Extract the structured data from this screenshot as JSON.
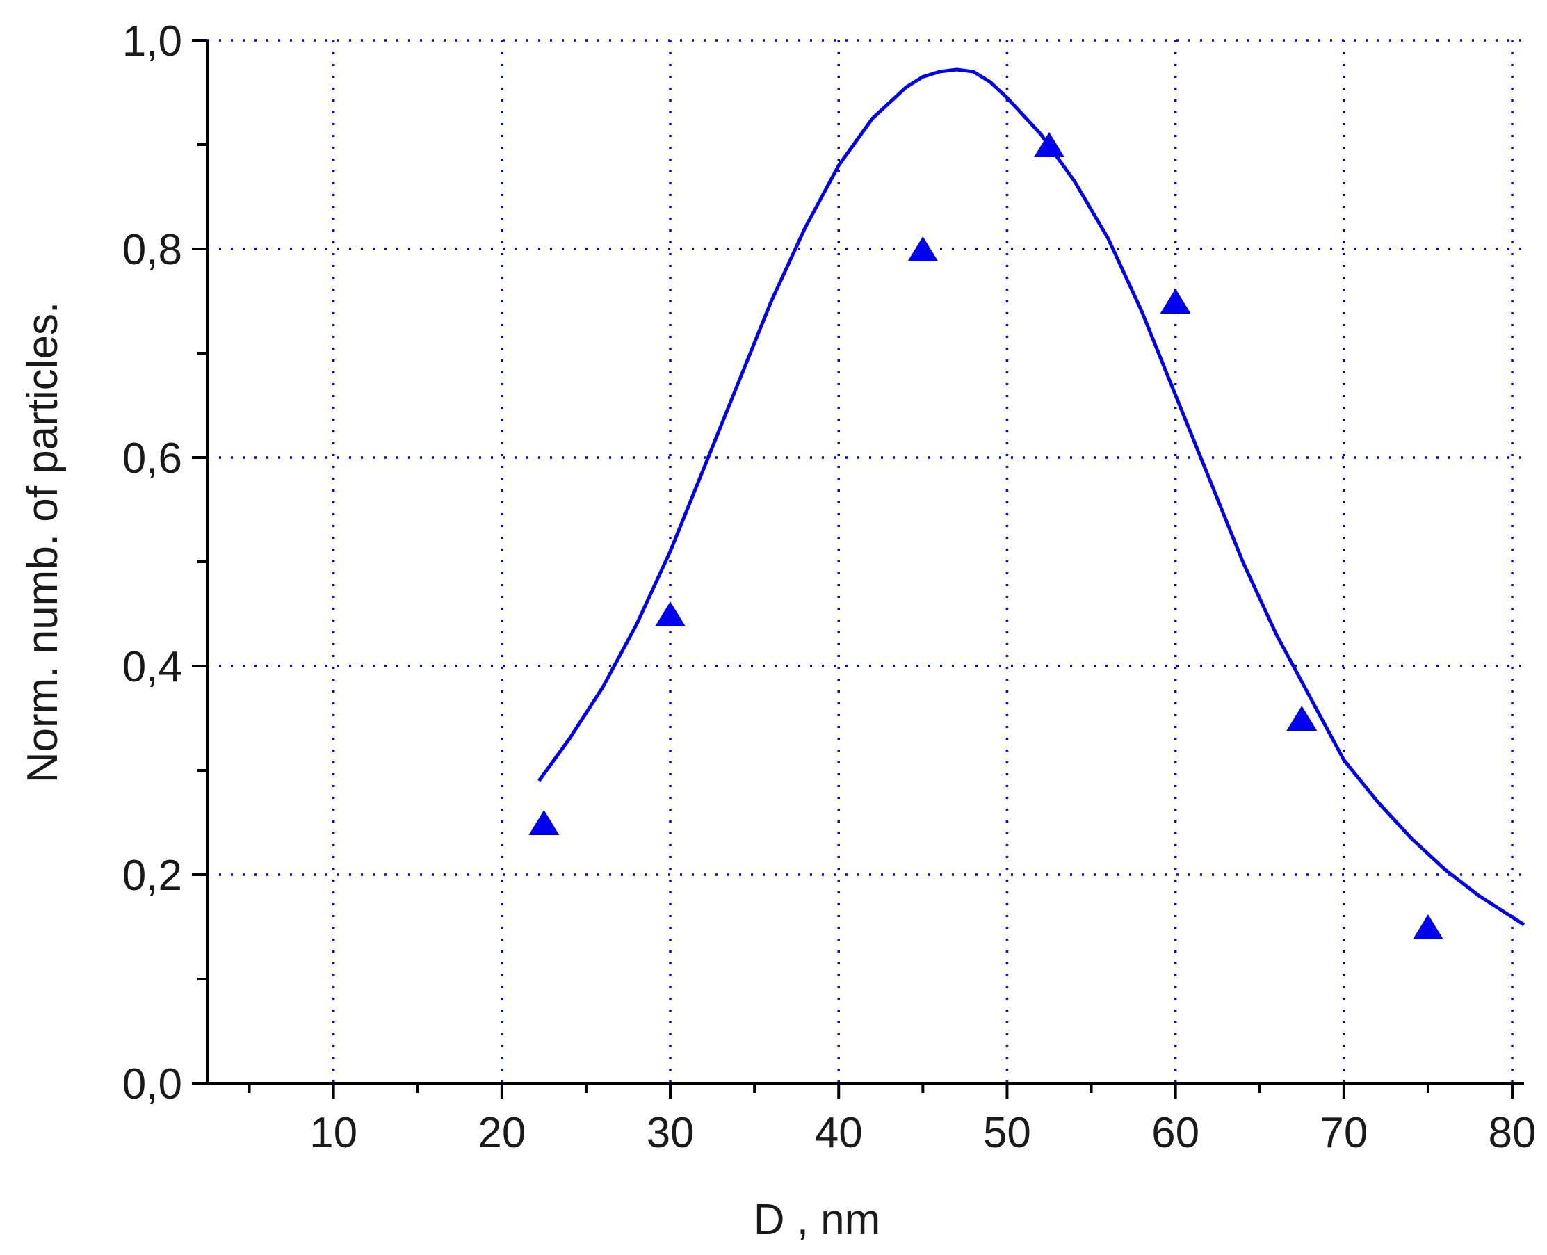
{
  "chart_data": {
    "type": "scatter",
    "xlabel": "D , nm",
    "ylabel": "Norm. numb. of particles.",
    "xlim": [
      2.5,
      80.7
    ],
    "ylim": [
      0.0,
      1.0
    ],
    "x_ticks": [
      "10",
      "20",
      "30",
      "40",
      "50",
      "60",
      "70",
      "80"
    ],
    "y_ticks": [
      "0,0",
      "0,2",
      "0,4",
      "0,6",
      "0,8",
      "1,0"
    ],
    "x_tick_values": [
      10,
      20,
      30,
      40,
      50,
      60,
      70,
      80
    ],
    "y_tick_values": [
      0.0,
      0.2,
      0.4,
      0.6,
      0.8,
      1.0
    ],
    "x_minor_ticks": [
      5,
      15,
      25,
      35,
      45,
      55,
      65,
      75
    ],
    "y_minor_ticks": [
      0.1,
      0.3,
      0.5,
      0.7,
      0.9
    ],
    "grid": true,
    "colors": {
      "series": "#0000ee",
      "grid": "#0000ee",
      "axis": "#000000"
    },
    "series": [
      {
        "kind": "points",
        "marker": "triangle",
        "x": [
          22.5,
          30,
          45,
          52.5,
          60,
          67.5,
          75
        ],
        "y": [
          0.25,
          0.45,
          0.8,
          0.9,
          0.75,
          0.35,
          0.15
        ]
      },
      {
        "kind": "fit-line",
        "x": [
          22.2,
          24,
          26,
          28,
          30,
          32,
          34,
          36,
          38,
          40,
          42,
          44,
          45,
          46,
          47,
          48,
          49,
          50,
          52,
          54,
          56,
          58,
          60,
          62,
          64,
          66,
          68,
          70,
          72,
          74,
          76,
          78,
          80.7
        ],
        "y": [
          0.29,
          0.33,
          0.38,
          0.44,
          0.51,
          0.59,
          0.67,
          0.75,
          0.82,
          0.88,
          0.925,
          0.955,
          0.965,
          0.97,
          0.972,
          0.97,
          0.96,
          0.945,
          0.91,
          0.865,
          0.81,
          0.74,
          0.66,
          0.58,
          0.5,
          0.43,
          0.37,
          0.31,
          0.27,
          0.235,
          0.205,
          0.18,
          0.152
        ]
      }
    ]
  }
}
